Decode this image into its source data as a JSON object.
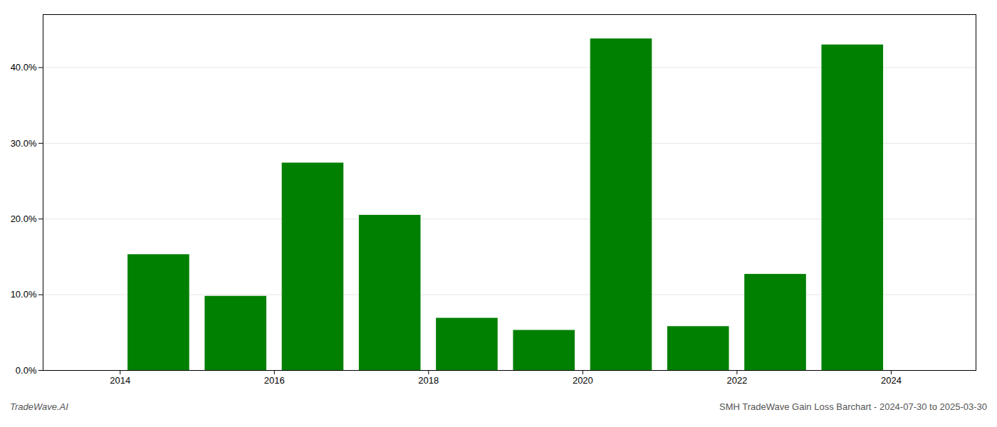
{
  "chart_data": {
    "type": "bar",
    "x": [
      2013.5,
      2014.5,
      2015.5,
      2016.5,
      2017.5,
      2018.5,
      2019.5,
      2020.5,
      2021.5,
      2022.5,
      2023.5,
      2024.5
    ],
    "values": [
      0.0,
      0.153,
      0.098,
      0.274,
      0.205,
      0.069,
      0.053,
      0.438,
      0.058,
      0.127,
      0.43,
      0.0
    ],
    "color": "#008000",
    "xlim": [
      2013.0,
      2025.1
    ],
    "xticks": [
      2014,
      2016,
      2018,
      2020,
      2022,
      2024
    ],
    "ylim": [
      0.0,
      0.47
    ],
    "yticks": [
      {
        "value": 0.0,
        "label": "0.0%"
      },
      {
        "value": 0.1,
        "label": "10.0%"
      },
      {
        "value": 0.2,
        "label": "20.0%"
      },
      {
        "value": 0.3,
        "label": "30.0%"
      },
      {
        "value": 0.4,
        "label": "40.0%"
      }
    ],
    "grid": true,
    "annotations": [
      "TradeWave.AI",
      "SMH TradeWave Gain Loss Barchart - 2024-07-30 to 2025-03-30"
    ]
  }
}
